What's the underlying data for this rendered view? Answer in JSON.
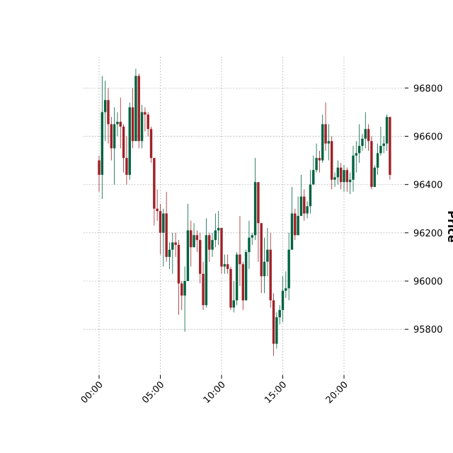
{
  "chart_data": {
    "type": "candlestick",
    "y_label": "Price",
    "x": [
      "00:00",
      "00:15",
      "00:30",
      "00:45",
      "01:00",
      "01:15",
      "01:30",
      "01:45",
      "02:00",
      "02:15",
      "02:30",
      "02:45",
      "03:00",
      "03:15",
      "03:30",
      "03:45",
      "04:00",
      "04:15",
      "04:30",
      "04:45",
      "05:00",
      "05:15",
      "05:30",
      "05:45",
      "06:00",
      "06:15",
      "06:30",
      "06:45",
      "07:00",
      "07:15",
      "07:30",
      "07:45",
      "08:00",
      "08:15",
      "08:30",
      "08:45",
      "09:00",
      "09:15",
      "09:30",
      "09:45",
      "10:00",
      "10:15",
      "10:30",
      "10:45",
      "11:00",
      "11:15",
      "11:30",
      "11:45",
      "12:00",
      "12:15",
      "12:30",
      "12:45",
      "13:00",
      "13:15",
      "13:30",
      "13:45",
      "14:00",
      "14:15",
      "14:30",
      "14:45",
      "15:00",
      "15:15",
      "15:30",
      "15:45",
      "16:00",
      "16:15",
      "16:30",
      "16:45",
      "17:00",
      "17:15",
      "17:30",
      "17:45",
      "18:00",
      "18:15",
      "18:30",
      "18:45",
      "19:00",
      "19:15",
      "19:30",
      "19:45",
      "20:00",
      "20:15",
      "20:30",
      "20:45",
      "21:00",
      "21:15",
      "21:30",
      "21:45",
      "22:00",
      "22:15",
      "22:30",
      "22:45",
      "23:00",
      "23:15",
      "23:30",
      "23:45"
    ],
    "open": [
      96500,
      96440,
      96700,
      96750,
      96650,
      96550,
      96650,
      96660,
      96640,
      96510,
      96440,
      96720,
      96580,
      96850,
      96580,
      96700,
      96690,
      96630,
      96510,
      96300,
      96290,
      96200,
      96280,
      96100,
      96130,
      96160,
      96150,
      95990,
      95940,
      96000,
      96210,
      96140,
      96190,
      96170,
      96030,
      95900,
      96190,
      96130,
      96170,
      96210,
      96220,
      96060,
      96070,
      96050,
      95890,
      95920,
      96110,
      96070,
      95920,
      96120,
      96180,
      96190,
      96410,
      96240,
      96020,
      96080,
      96130,
      95920,
      95740,
      95850,
      95880,
      95960,
      95970,
      96130,
      96280,
      96190,
      96270,
      96350,
      96280,
      96310,
      96400,
      96460,
      96510,
      96500,
      96650,
      96570,
      96580,
      96420,
      96430,
      96470,
      96410,
      96460,
      96410,
      96420,
      96520,
      96530,
      96560,
      96590,
      96630,
      96580,
      96390,
      96470,
      96530,
      96560,
      96570,
      96680
    ],
    "high": [
      96520,
      96850,
      96830,
      96800,
      96680,
      96720,
      96700,
      96760,
      96650,
      96600,
      96740,
      96800,
      96880,
      96860,
      96730,
      96720,
      96700,
      96640,
      96510,
      96380,
      96320,
      96300,
      96370,
      96160,
      96200,
      96200,
      96170,
      96000,
      96060,
      96320,
      96250,
      96240,
      96210,
      96200,
      96080,
      96260,
      96200,
      96200,
      96280,
      96290,
      96220,
      96110,
      96110,
      96060,
      96000,
      96120,
      96270,
      96080,
      96130,
      96250,
      96200,
      96510,
      96410,
      96240,
      96180,
      96220,
      96200,
      95950,
      95870,
      95900,
      96020,
      96040,
      96200,
      96390,
      96300,
      96350,
      96440,
      96380,
      96330,
      96460,
      96520,
      96570,
      96540,
      96690,
      96740,
      96650,
      96600,
      96450,
      96500,
      96490,
      96480,
      96470,
      96450,
      96560,
      96580,
      96650,
      96610,
      96700,
      96650,
      96600,
      96480,
      96570,
      96640,
      96600,
      96690,
      96680
    ],
    "low": [
      96370,
      96340,
      96580,
      96570,
      96500,
      96400,
      96600,
      96550,
      96450,
      96400,
      96420,
      96550,
      96580,
      96550,
      96550,
      96620,
      96600,
      96490,
      96230,
      96250,
      96110,
      96060,
      96080,
      96050,
      96030,
      96100,
      95860,
      95880,
      95790,
      96000,
      96060,
      96140,
      96120,
      95990,
      95880,
      95890,
      96080,
      96100,
      96140,
      96150,
      96030,
      96030,
      96030,
      95880,
      95870,
      95900,
      95980,
      95880,
      95920,
      96050,
      96150,
      96170,
      96080,
      95950,
      95950,
      96020,
      95890,
      95690,
      95720,
      95820,
      95830,
      95930,
      95920,
      96130,
      96170,
      96190,
      96270,
      96250,
      96260,
      96280,
      96400,
      96450,
      96450,
      96490,
      96540,
      96500,
      96380,
      96390,
      96400,
      96380,
      96370,
      96370,
      96360,
      96370,
      96450,
      96490,
      96540,
      96550,
      96540,
      96380,
      96390,
      96440,
      96520,
      96530,
      96540,
      96420
    ],
    "close": [
      96440,
      96700,
      96750,
      96650,
      96550,
      96650,
      96660,
      96640,
      96510,
      96440,
      96720,
      96580,
      96850,
      96580,
      96700,
      96690,
      96630,
      96510,
      96300,
      96290,
      96200,
      96280,
      96100,
      96130,
      96160,
      96150,
      95990,
      95940,
      96000,
      96210,
      96140,
      96190,
      96170,
      96030,
      95900,
      96190,
      96130,
      96170,
      96210,
      96220,
      96060,
      96070,
      96050,
      95890,
      95920,
      96110,
      96070,
      95920,
      96120,
      96180,
      96190,
      96410,
      96240,
      96020,
      96080,
      96130,
      95920,
      95740,
      95850,
      95880,
      95960,
      95970,
      96130,
      96280,
      96190,
      96270,
      96350,
      96280,
      96310,
      96400,
      96460,
      96510,
      96500,
      96650,
      96570,
      96580,
      96420,
      96430,
      96470,
      96410,
      96460,
      96410,
      96420,
      96520,
      96530,
      96560,
      96590,
      96630,
      96580,
      96390,
      96470,
      96530,
      96560,
      96570,
      96680,
      96440
    ],
    "up_color": "#006340",
    "down_color": "#a02128",
    "xlim": [
      -1.3,
      26.3
    ],
    "xticks": [
      {
        "value": 0,
        "label": "00:00"
      },
      {
        "value": 5,
        "label": "05:00"
      },
      {
        "value": 10,
        "label": "10:00"
      },
      {
        "value": 15,
        "label": "15:00"
      },
      {
        "value": 20,
        "label": "20:00"
      }
    ],
    "ylim": [
      95610,
      96930
    ],
    "yticks": [
      95800,
      96000,
      96200,
      96400,
      96600,
      96800
    ],
    "grid": true
  }
}
